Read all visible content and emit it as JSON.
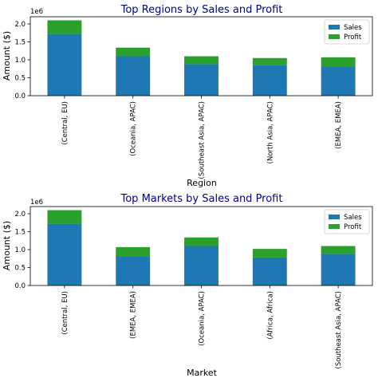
{
  "chart_data": [
    {
      "type": "bar",
      "stacked": true,
      "title": "Top Regions by Sales and Profit",
      "title_color": "#00008b",
      "xlabel": "Region",
      "ylabel": "Amount ($)",
      "y_offset_label": "1e6",
      "ylim": [
        0,
        2.2
      ],
      "yticks": [
        0.0,
        0.5,
        1.0,
        1.5,
        2.0
      ],
      "ytick_labels": [
        "0.0",
        "0.5",
        "1.0",
        "1.5",
        "2.0"
      ],
      "categories": [
        "(Central, EU)",
        "(Oceania, APAC)",
        "(Southeast Asia, APAC)",
        "(North Asia, APAC)",
        "(EMEA, EMEA)"
      ],
      "series": [
        {
          "name": "Sales",
          "color": "#1f77b4",
          "values": [
            1.72,
            1.1,
            0.88,
            0.85,
            0.8
          ]
        },
        {
          "name": "Profit",
          "color": "#2ca02c",
          "values": [
            0.38,
            0.24,
            0.22,
            0.2,
            0.27
          ]
        }
      ],
      "legend": "top-right",
      "grid": false
    },
    {
      "type": "bar",
      "stacked": true,
      "title": "Top Markets by Sales and Profit",
      "title_color": "#00008b",
      "xlabel": "Market",
      "ylabel": "Amount ($)",
      "y_offset_label": "1e6",
      "ylim": [
        0,
        2.2
      ],
      "yticks": [
        0.0,
        0.5,
        1.0,
        1.5,
        2.0
      ],
      "ytick_labels": [
        "0.0",
        "0.5",
        "1.0",
        "1.5",
        "2.0"
      ],
      "categories": [
        "(Central, EU)",
        "(EMEA, EMEA)",
        "(Oceania, APAC)",
        "(Africa, Africa)",
        "(Southeast Asia, APAC)"
      ],
      "series": [
        {
          "name": "Sales",
          "color": "#1f77b4",
          "values": [
            1.72,
            0.8,
            1.1,
            0.78,
            0.88
          ]
        },
        {
          "name": "Profit",
          "color": "#2ca02c",
          "values": [
            0.38,
            0.27,
            0.24,
            0.24,
            0.22
          ]
        }
      ],
      "legend": "top-right",
      "grid": false
    }
  ]
}
